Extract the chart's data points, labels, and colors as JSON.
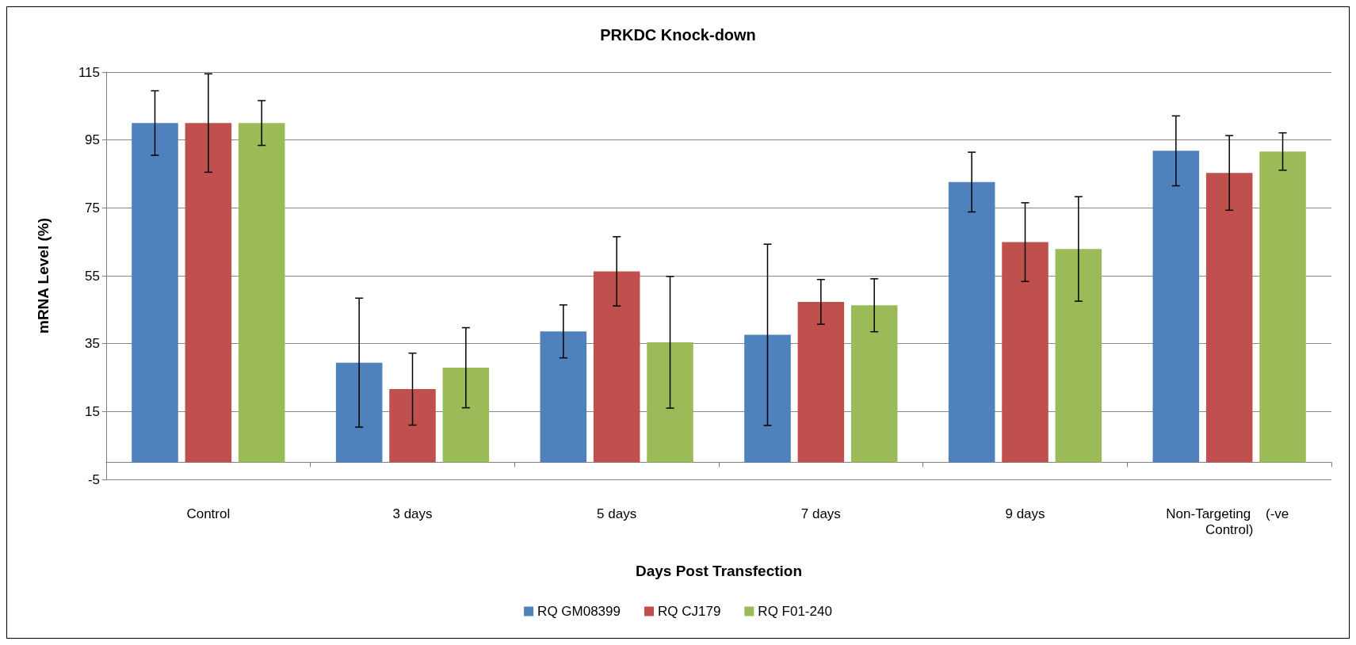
{
  "chart_data": {
    "type": "bar",
    "title": "PRKDC Knock-down",
    "xlabel": "Days Post Transfection",
    "ylabel": "mRNA Level (%)",
    "categories": [
      "Control",
      "3 days",
      "5 days",
      "7 days",
      "9 days",
      "Non-Targeting    (-ve Control)"
    ],
    "series": [
      {
        "name": "RQ GM08399",
        "color": "#4f81bd",
        "values": [
          100,
          29.4,
          38.6,
          37.6,
          82.6,
          91.8
        ],
        "errors": [
          9.5,
          19,
          7.8,
          26.7,
          8.8,
          10.3
        ]
      },
      {
        "name": "RQ CJ179",
        "color": "#c0504d",
        "values": [
          100,
          21.6,
          56.3,
          47.3,
          64.9,
          85.3
        ],
        "errors": [
          14.5,
          10.6,
          10.2,
          6.6,
          11.6,
          11
        ]
      },
      {
        "name": "RQ F01-240",
        "color": "#9bbb59",
        "values": [
          100,
          27.9,
          35.4,
          46.3,
          62.9,
          91.6
        ],
        "errors": [
          6.6,
          11.8,
          19.4,
          7.8,
          15.4,
          5.5
        ]
      }
    ],
    "ylim": [
      -5,
      115
    ],
    "yticks": [
      -5,
      15,
      35,
      55,
      75,
      95,
      115
    ],
    "grid": "y",
    "legend": "bottom"
  }
}
